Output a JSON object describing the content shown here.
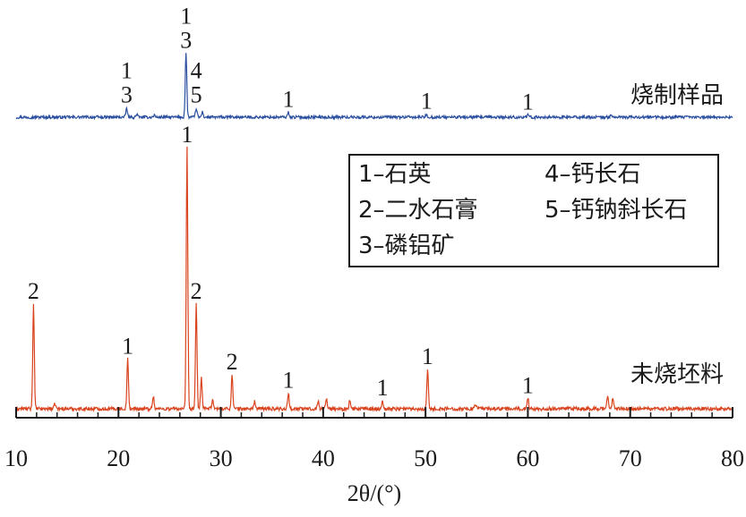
{
  "chart_data": {
    "type": "line",
    "title": "",
    "xlabel": "2θ/(°)",
    "ylabel": "",
    "xlim": [
      10,
      80
    ],
    "x_ticks": [
      "10",
      "20",
      "30",
      "40",
      "50",
      "60",
      "70",
      "80"
    ],
    "grid": false,
    "series": [
      {
        "name": "烧制样品",
        "color": "#2b4fa0",
        "peaks": [
          {
            "x": 20.8,
            "height": 0.09
          },
          {
            "x": 21.8,
            "height": 0.03
          },
          {
            "x": 23.5,
            "height": 0.02
          },
          {
            "x": 26.6,
            "height": 0.62
          },
          {
            "x": 27.6,
            "height": 0.09
          },
          {
            "x": 28.2,
            "height": 0.05
          },
          {
            "x": 36.6,
            "height": 0.05
          },
          {
            "x": 50.1,
            "height": 0.03
          },
          {
            "x": 60.0,
            "height": 0.02
          },
          {
            "x": 68.1,
            "height": 0.02
          }
        ],
        "annotations": [
          {
            "x": 20.8,
            "lines": [
              "1",
              "3"
            ]
          },
          {
            "x": 26.6,
            "lines": [
              "1",
              "3"
            ]
          },
          {
            "x": 27.6,
            "lines": [
              "4",
              "5"
            ]
          },
          {
            "x": 36.6,
            "lines": [
              "1"
            ]
          },
          {
            "x": 50.1,
            "lines": [
              "1"
            ]
          },
          {
            "x": 60.0,
            "lines": [
              "1"
            ]
          }
        ]
      },
      {
        "name": "未烧坯料",
        "color": "#d9431e",
        "peaks": [
          {
            "x": 11.7,
            "height": 0.4
          },
          {
            "x": 13.8,
            "height": 0.02
          },
          {
            "x": 20.9,
            "height": 0.19
          },
          {
            "x": 23.4,
            "height": 0.05
          },
          {
            "x": 26.7,
            "height": 1.0
          },
          {
            "x": 27.6,
            "height": 0.4
          },
          {
            "x": 28.1,
            "height": 0.12
          },
          {
            "x": 29.2,
            "height": 0.04
          },
          {
            "x": 31.1,
            "height": 0.13
          },
          {
            "x": 33.3,
            "height": 0.03
          },
          {
            "x": 36.6,
            "height": 0.06
          },
          {
            "x": 39.5,
            "height": 0.03
          },
          {
            "x": 40.3,
            "height": 0.04
          },
          {
            "x": 42.6,
            "height": 0.03
          },
          {
            "x": 45.8,
            "height": 0.03
          },
          {
            "x": 50.2,
            "height": 0.15
          },
          {
            "x": 54.9,
            "height": 0.02
          },
          {
            "x": 60.0,
            "height": 0.04
          },
          {
            "x": 67.8,
            "height": 0.05
          },
          {
            "x": 68.3,
            "height": 0.04
          }
        ],
        "annotations": [
          {
            "x": 11.7,
            "lines": [
              "2"
            ]
          },
          {
            "x": 20.9,
            "lines": [
              "1"
            ]
          },
          {
            "x": 26.7,
            "lines": [
              "1"
            ]
          },
          {
            "x": 27.6,
            "lines": [
              "2"
            ]
          },
          {
            "x": 31.1,
            "lines": [
              "2"
            ]
          },
          {
            "x": 36.6,
            "lines": [
              "1"
            ]
          },
          {
            "x": 45.8,
            "lines": [
              "1"
            ]
          },
          {
            "x": 50.2,
            "lines": [
              "1"
            ]
          },
          {
            "x": 60.0,
            "lines": [
              "1"
            ]
          }
        ]
      }
    ],
    "legend": {
      "placement": "upper-right",
      "entries": [
        "1–石英",
        "4–钙长石",
        "2–二水石膏",
        "5–钙钠斜长石",
        "3–磷铝矿"
      ]
    }
  }
}
